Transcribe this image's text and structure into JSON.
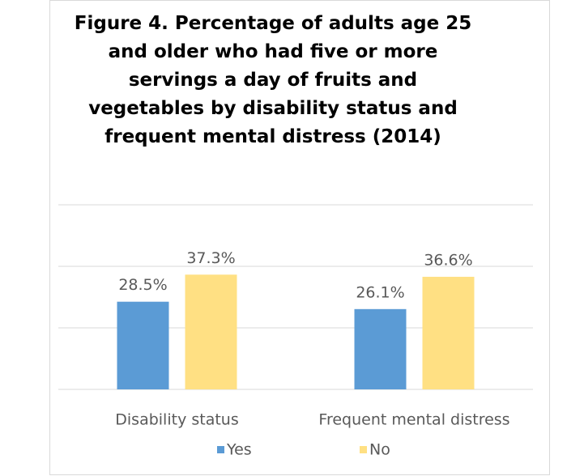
{
  "chart_data": {
    "type": "bar",
    "title": "Figure 4. Percentage of adults age 25 and older who had five or more servings a day of fruits and vegetables by disability status and frequent mental distress (2014)",
    "categories": [
      "Disability status",
      "Frequent mental distress"
    ],
    "series": [
      {
        "name": "Yes",
        "color": "#5b9bd5",
        "values": [
          28.5,
          26.1
        ],
        "value_labels": [
          "28.5%",
          "26.1%"
        ]
      },
      {
        "name": "No",
        "color": "#ffe083",
        "values": [
          37.3,
          36.6
        ],
        "value_labels": [
          "37.3%",
          "36.6%"
        ]
      }
    ],
    "ylim": [
      0,
      60
    ],
    "yticks": [
      0,
      20,
      40,
      60
    ],
    "grid": true,
    "legend": "bottom"
  }
}
